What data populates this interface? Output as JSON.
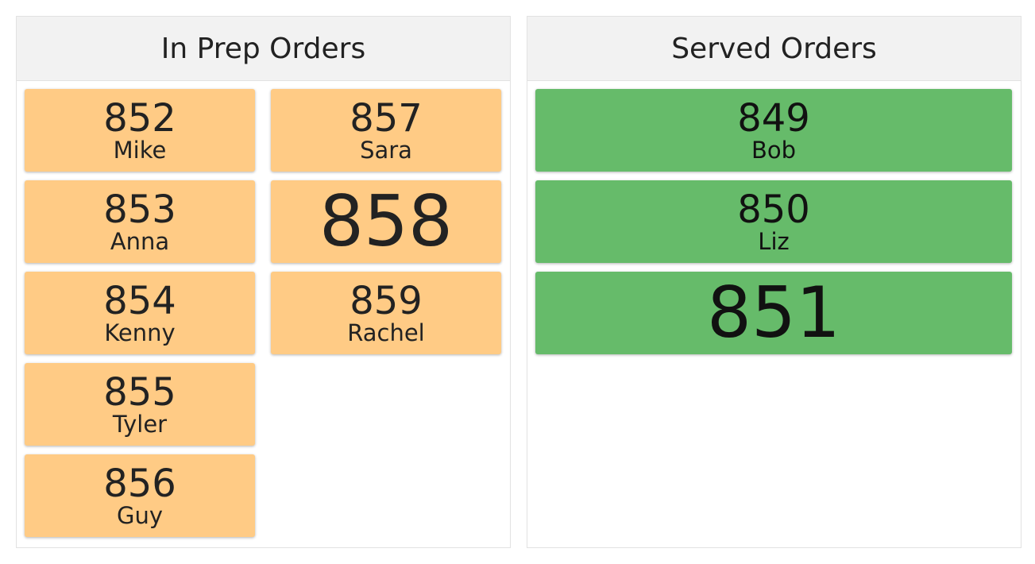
{
  "panels": [
    {
      "title": "In Prep Orders",
      "orders": [
        {
          "number": 852,
          "name": "Mike"
        },
        {
          "number": 853,
          "name": "Anna"
        },
        {
          "number": 854,
          "name": "Kenny"
        },
        {
          "number": 855,
          "name": "Tyler"
        },
        {
          "number": 856,
          "name": "Guy"
        },
        {
          "number": 857,
          "name": "Sara"
        },
        {
          "number": 858
        },
        {
          "number": 859,
          "name": "Rachel"
        }
      ]
    },
    {
      "title": "Served Orders",
      "orders": [
        {
          "number": 849,
          "name": "Bob"
        },
        {
          "number": 850,
          "name": "Liz"
        },
        {
          "number": 851
        }
      ]
    }
  ]
}
